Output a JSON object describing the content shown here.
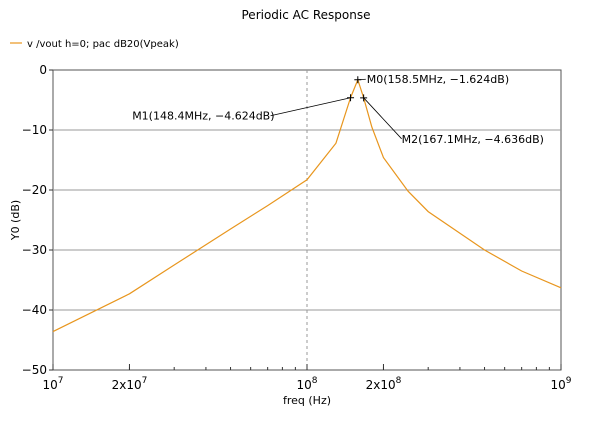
{
  "chart_data": {
    "type": "line",
    "title": "Periodic AC Response",
    "xlabel": "freq (Hz)",
    "ylabel": "Y0 (dB)",
    "xscale": "log",
    "xlim": [
      10000000,
      1000000000
    ],
    "ylim": [
      -50,
      0
    ],
    "grid": true,
    "legend_placement": "top-left",
    "x_tick_labels": [
      {
        "value": 10000000,
        "base": "10",
        "exp": "7"
      },
      {
        "value": 20000000,
        "base": "2x10",
        "exp": "7"
      },
      {
        "value": 100000000,
        "base": "10",
        "exp": "8"
      },
      {
        "value": 200000000,
        "base": "2x10",
        "exp": "8"
      },
      {
        "value": 1000000000,
        "base": "10",
        "exp": "9"
      }
    ],
    "y_ticks": [
      0,
      -10,
      -20,
      -30,
      -40,
      -50
    ],
    "y_tick_labels": [
      "0",
      "−10",
      "−20",
      "−30",
      "−40",
      "−50"
    ],
    "series": [
      {
        "name": "v /vout h=0; pac dB20(Vpeak)",
        "color": "#e8961e",
        "x": [
          10000000,
          20000000,
          30000000,
          50000000,
          70000000,
          100000000,
          130000000,
          148400000,
          158500000,
          167100000,
          180000000,
          200000000,
          250000000,
          300000000,
          500000000,
          700000000,
          1000000000
        ],
        "y": [
          -43.6,
          -37.3,
          -32.5,
          -26.5,
          -22.6,
          -18.3,
          -12.2,
          -4.624,
          -1.624,
          -4.636,
          -9.5,
          -14.6,
          -20.2,
          -23.6,
          -30.0,
          -33.5,
          -36.3
        ]
      }
    ],
    "markers": [
      {
        "label": "M0(158.5MHz, −1.624dB)",
        "x": 158500000,
        "y": -1.624,
        "side": "right"
      },
      {
        "label": "M1(148.4MHz, −4.624dB)",
        "x": 148400000,
        "y": -4.624,
        "side": "left"
      },
      {
        "label": "M2(167.1MHz, −4.636dB)",
        "x": 167100000,
        "y": -4.636,
        "side": "right-below"
      }
    ]
  }
}
